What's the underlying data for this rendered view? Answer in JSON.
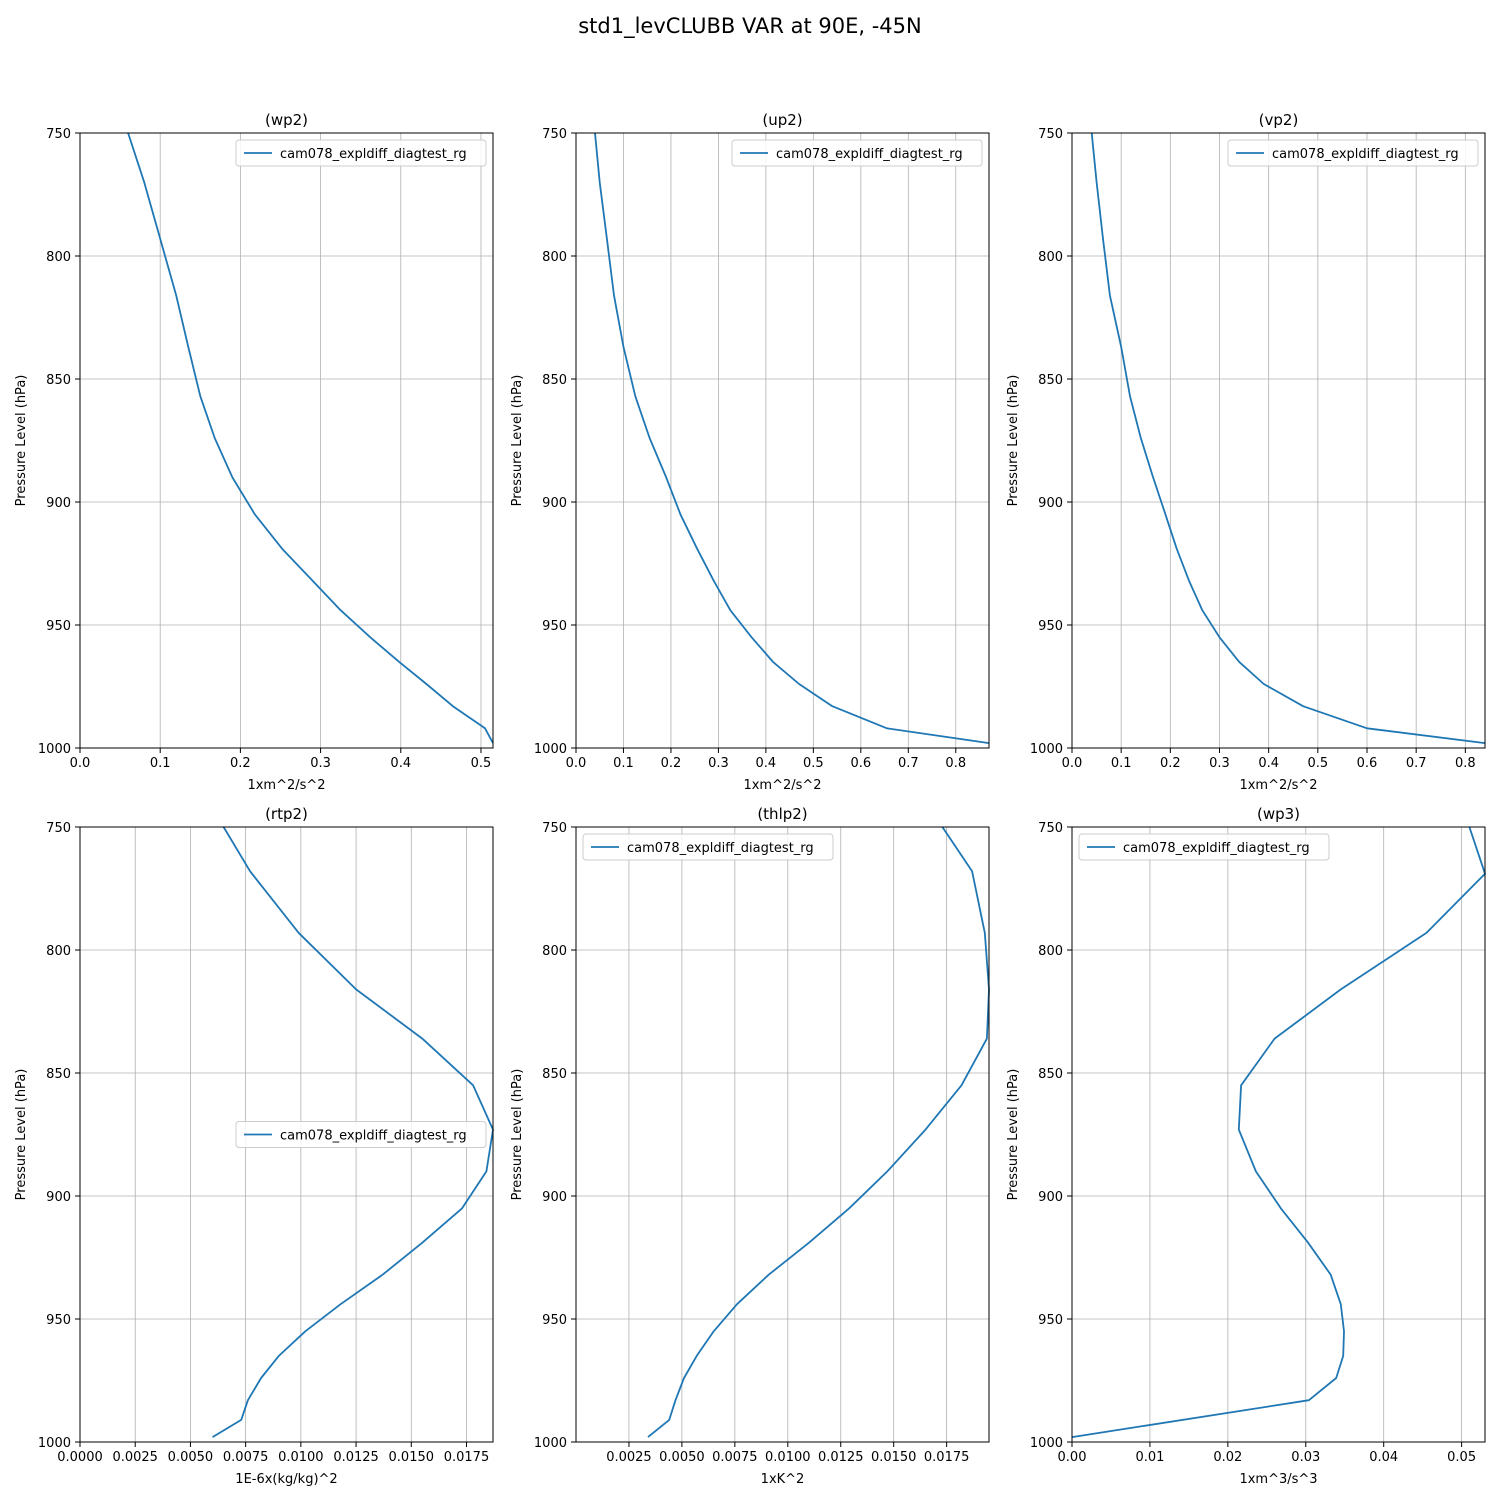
{
  "figure": {
    "title": "std1_levCLUBB VAR at 90E, -45N"
  },
  "chart_data": [
    {
      "type": "line",
      "title": "(wp2)",
      "xlabel": "1xm^2/s^2",
      "ylabel": "Pressure Level (hPa)",
      "xlim": [
        0,
        0.515
      ],
      "ylim": [
        1000,
        750
      ],
      "xticks": [
        0,
        0.1,
        0.2,
        0.3,
        0.4,
        0.5
      ],
      "xtick_labels": [
        "0.0",
        "0.1",
        "0.2",
        "0.3",
        "0.4",
        "0.5"
      ],
      "yticks": [
        750,
        800,
        850,
        900,
        950,
        1000
      ],
      "ytick_labels": [
        "750",
        "800",
        "850",
        "900",
        "950",
        "1000"
      ],
      "grid": true,
      "legend": "upper right",
      "series": [
        {
          "name": "cam078_expldiff_diagtest_rg",
          "color": "#1f77b4",
          "x": [
            0.06,
            0.08,
            0.1,
            0.12,
            0.135,
            0.15,
            0.168,
            0.19,
            0.218,
            0.252,
            0.29,
            0.325,
            0.362,
            0.398,
            0.432,
            0.465,
            0.505,
            0.515
          ],
          "y": [
            750,
            770,
            793,
            816,
            837,
            857,
            874,
            890,
            905,
            919,
            932,
            944,
            955,
            965,
            974,
            983,
            992,
            998
          ]
        }
      ]
    },
    {
      "type": "line",
      "title": "(up2)",
      "xlabel": "1xm^2/s^2",
      "ylabel": "Pressure Level (hPa)",
      "xlim": [
        0,
        0.87
      ],
      "ylim": [
        1000,
        750
      ],
      "xticks": [
        0,
        0.1,
        0.2,
        0.3,
        0.4,
        0.5,
        0.6,
        0.7,
        0.8
      ],
      "xtick_labels": [
        "0.0",
        "0.1",
        "0.2",
        "0.3",
        "0.4",
        "0.5",
        "0.6",
        "0.7",
        "0.8"
      ],
      "yticks": [
        750,
        800,
        850,
        900,
        950,
        1000
      ],
      "ytick_labels": [
        "750",
        "800",
        "850",
        "900",
        "950",
        "1000"
      ],
      "grid": true,
      "legend": "upper right",
      "series": [
        {
          "name": "cam078_expldiff_diagtest_rg",
          "color": "#1f77b4",
          "x": [
            0.04,
            0.05,
            0.065,
            0.08,
            0.1,
            0.125,
            0.155,
            0.19,
            0.22,
            0.255,
            0.29,
            0.325,
            0.37,
            0.415,
            0.47,
            0.54,
            0.655,
            0.87
          ],
          "y": [
            750,
            770,
            793,
            816,
            837,
            857,
            874,
            890,
            905,
            919,
            932,
            944,
            955,
            965,
            974,
            983,
            992,
            998
          ]
        }
      ]
    },
    {
      "type": "line",
      "title": "(vp2)",
      "xlabel": "1xm^2/s^2",
      "ylabel": "Pressure Level (hPa)",
      "xlim": [
        0,
        0.84
      ],
      "ylim": [
        1000,
        750
      ],
      "xticks": [
        0,
        0.1,
        0.2,
        0.3,
        0.4,
        0.5,
        0.6,
        0.7,
        0.8
      ],
      "xtick_labels": [
        "0.0",
        "0.1",
        "0.2",
        "0.3",
        "0.4",
        "0.5",
        "0.6",
        "0.7",
        "0.8"
      ],
      "yticks": [
        750,
        800,
        850,
        900,
        950,
        1000
      ],
      "ytick_labels": [
        "750",
        "800",
        "850",
        "900",
        "950",
        "1000"
      ],
      "grid": true,
      "legend": "upper right",
      "series": [
        {
          "name": "cam078_expldiff_diagtest_rg",
          "color": "#1f77b4",
          "x": [
            0.04,
            0.05,
            0.063,
            0.077,
            0.1,
            0.118,
            0.14,
            0.165,
            0.19,
            0.213,
            0.238,
            0.265,
            0.3,
            0.34,
            0.39,
            0.47,
            0.6,
            0.84
          ],
          "y": [
            750,
            770,
            793,
            816,
            837,
            857,
            874,
            890,
            905,
            919,
            932,
            944,
            955,
            965,
            974,
            983,
            992,
            998
          ]
        }
      ]
    },
    {
      "type": "line",
      "title": "(rtp2)",
      "xlabel": "1E-6x(kg/kg)^2",
      "ylabel": "Pressure Level (hPa)",
      "xlim": [
        0,
        0.0187
      ],
      "ylim": [
        1000,
        750
      ],
      "xticks": [
        0,
        0.0025,
        0.005,
        0.0075,
        0.01,
        0.0125,
        0.015,
        0.0175
      ],
      "xtick_labels": [
        "0.0000",
        "0.0025",
        "0.0050",
        "0.0075",
        "0.0100",
        "0.0125",
        "0.0150",
        "0.0175"
      ],
      "yticks": [
        750,
        800,
        850,
        900,
        950,
        1000
      ],
      "ytick_labels": [
        "750",
        "800",
        "850",
        "900",
        "950",
        "1000"
      ],
      "grid": true,
      "legend": "center right",
      "series": [
        {
          "name": "cam078_expldiff_diagtest_rg",
          "color": "#1f77b4",
          "x": [
            0.0065,
            0.0077,
            0.0099,
            0.0125,
            0.0155,
            0.0178,
            0.0187,
            0.0184,
            0.0173,
            0.0155,
            0.0137,
            0.0118,
            0.0102,
            0.009,
            0.0082,
            0.0076,
            0.0073,
            0.006
          ],
          "y": [
            750,
            768,
            793,
            816,
            836,
            855,
            873,
            890,
            905,
            919,
            932,
            944,
            955,
            965,
            974,
            983,
            991,
            998
          ]
        }
      ]
    },
    {
      "type": "line",
      "title": "(thlp2)",
      "xlabel": "1xK^2",
      "ylabel": "Pressure Level (hPa)",
      "xlim": [
        0,
        0.0195
      ],
      "ylim": [
        1000,
        750
      ],
      "xticks": [
        0.0025,
        0.005,
        0.0075,
        0.01,
        0.0125,
        0.015,
        0.0175
      ],
      "xtick_labels": [
        "0.0025",
        "0.0050",
        "0.0075",
        "0.0100",
        "0.0125",
        "0.0150",
        "0.0175"
      ],
      "yticks": [
        750,
        800,
        850,
        900,
        950,
        1000
      ],
      "ytick_labels": [
        "750",
        "800",
        "850",
        "900",
        "950",
        "1000"
      ],
      "grid": true,
      "legend": "upper left",
      "series": [
        {
          "name": "cam078_expldiff_diagtest_rg",
          "color": "#1f77b4",
          "x": [
            0.0173,
            0.0187,
            0.0193,
            0.0195,
            0.0194,
            0.0182,
            0.0165,
            0.0147,
            0.0129,
            0.011,
            0.0091,
            0.0076,
            0.0065,
            0.0057,
            0.0051,
            0.0047,
            0.0044,
            0.0034
          ],
          "y": [
            750,
            768,
            793,
            816,
            836,
            855,
            873,
            890,
            905,
            919,
            932,
            944,
            955,
            965,
            974,
            983,
            991,
            998
          ]
        }
      ]
    },
    {
      "type": "line",
      "title": "(wp3)",
      "xlabel": "1xm^3/s^3",
      "ylabel": "Pressure Level (hPa)",
      "xlim": [
        0,
        0.053
      ],
      "ylim": [
        1000,
        750
      ],
      "xticks": [
        0,
        0.01,
        0.02,
        0.03,
        0.04,
        0.05
      ],
      "xtick_labels": [
        "0.00",
        "0.01",
        "0.02",
        "0.03",
        "0.04",
        "0.05"
      ],
      "yticks": [
        750,
        800,
        850,
        900,
        950,
        1000
      ],
      "ytick_labels": [
        "750",
        "800",
        "850",
        "900",
        "950",
        "1000"
      ],
      "grid": true,
      "legend": "upper left",
      "series": [
        {
          "name": "cam078_expldiff_diagtest_rg",
          "color": "#1f77b4",
          "x": [
            0.051,
            0.053,
            0.0455,
            0.0345,
            0.026,
            0.0217,
            0.0214,
            0.0236,
            0.0268,
            0.0303,
            0.0332,
            0.0345,
            0.0349,
            0.0348,
            0.0339,
            0.0304,
            0.0,
            0.0
          ],
          "y": [
            750,
            769,
            793,
            816,
            836,
            855,
            873,
            890,
            905,
            919,
            932,
            944,
            955,
            965,
            974,
            983,
            998,
            998
          ]
        }
      ]
    }
  ]
}
